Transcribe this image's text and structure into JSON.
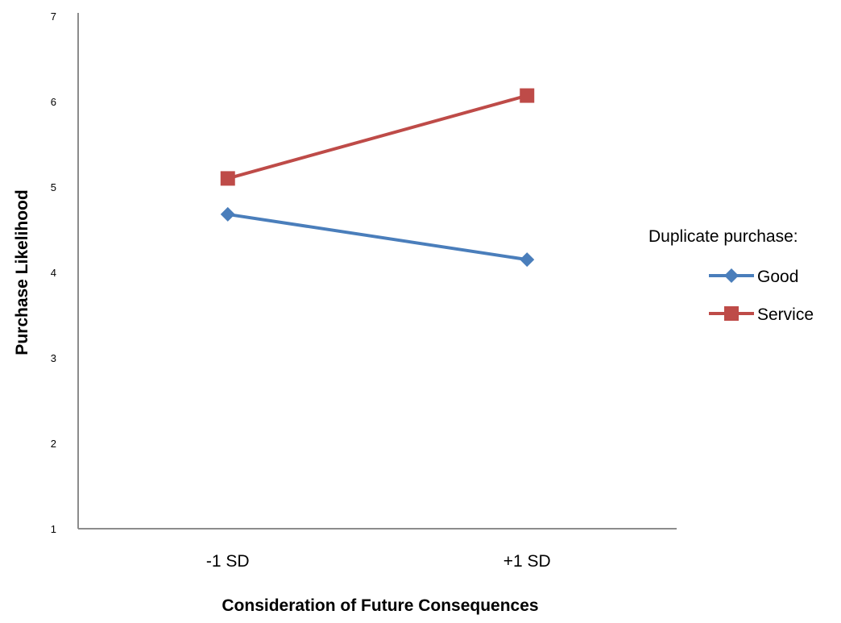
{
  "chart_data": {
    "type": "line",
    "title": "",
    "xlabel": "Consideration of Future Consequences",
    "ylabel": "Purchase Likelihood",
    "categories": [
      "-1 SD",
      "+1 SD"
    ],
    "ylim": [
      1,
      7
    ],
    "yticks": [
      1,
      2,
      3,
      4,
      5,
      6,
      7
    ],
    "grid": false,
    "legend": {
      "title": "Duplicate purchase:",
      "position": "right"
    },
    "series": [
      {
        "name": "Good",
        "values": [
          4.68,
          4.15
        ],
        "color": "#4a7ebb",
        "marker": "diamond"
      },
      {
        "name": "Service",
        "values": [
          5.1,
          6.07
        ],
        "color": "#be4b48",
        "marker": "square"
      }
    ]
  }
}
